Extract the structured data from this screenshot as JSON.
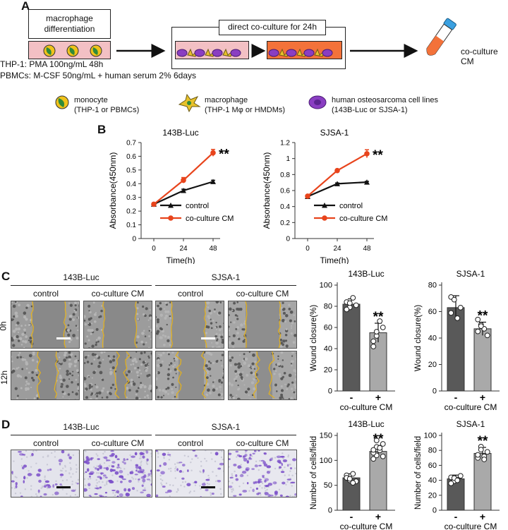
{
  "panelA": {
    "letter": "A",
    "box_title": "macrophage\ndifferentiation",
    "coculture_title": "direct co-culture for 24h",
    "tube_label": "co-culture CM",
    "protocol_line1": "THP-1: PMA 100ng/mL 48h",
    "protocol_line2": "PBMCs: M-CSF 50ng/mL + human serum 2% 6days",
    "legend": [
      {
        "name": "monocyte",
        "sub": "(THP-1 or PBMCs)"
      },
      {
        "name": "macrophage",
        "sub": "(THP-1 Mφ or HMDMs)"
      },
      {
        "name": "human osteosarcoma cell lines",
        "sub": "(143B-Luc or SJSA-1)"
      }
    ]
  },
  "panelB": {
    "letter": "B",
    "sig": "**",
    "ylabel": "Absorbance(450nm)",
    "xlabel": "Time(h)"
  },
  "panelC": {
    "letter": "C",
    "groups": [
      "143B-Luc",
      "SJSA-1"
    ],
    "cond": [
      "control",
      "co-culture CM"
    ],
    "rows": [
      "0h",
      "12h"
    ],
    "ylabel": "Wound closure(%)",
    "xlabel": "co-culture CM",
    "minus": "-",
    "plus": "+",
    "sig": "**"
  },
  "panelD": {
    "letter": "D",
    "groups": [
      "143B-Luc",
      "SJSA-1"
    ],
    "cond": [
      "control",
      "co-culture CM"
    ],
    "ylabel": "Number of cells/field",
    "xlabel": "co-culture CM",
    "minus": "-",
    "plus": "+",
    "sig": "**"
  },
  "colors": {
    "control": "#111111",
    "cm": "#e8441c",
    "bar_dark": "#595959",
    "bar_light": "#a9a9a9",
    "scratch": "#e0b022",
    "crystal": "#7b4fc9"
  },
  "chart_data": [
    {
      "type": "line",
      "title": "143B-Luc",
      "x": [
        0,
        24,
        48
      ],
      "xlabel": "Time(h)",
      "ylabel": "Absorbance(450nm)",
      "ylim": [
        0,
        0.7
      ],
      "yticks": [
        0,
        0.1,
        0.2,
        0.3,
        0.4,
        0.5,
        0.6,
        0.7
      ],
      "legend": "bottom-right",
      "series": [
        {
          "name": "control",
          "values": [
            0.25,
            0.35,
            0.415
          ],
          "err": [
            0.01,
            0.01,
            0.01
          ]
        },
        {
          "name": "co-culture CM",
          "values": [
            0.25,
            0.425,
            0.625
          ],
          "err": [
            0.01,
            0.02,
            0.025
          ]
        }
      ]
    },
    {
      "type": "line",
      "title": "SJSA-1",
      "x": [
        0,
        24,
        48
      ],
      "xlabel": "Time(h)",
      "ylabel": "Absorbance(450nm)",
      "ylim": [
        0,
        1.2
      ],
      "yticks": [
        0,
        0.2,
        0.4,
        0.6,
        0.8,
        1,
        1.2
      ],
      "legend": "bottom-right",
      "series": [
        {
          "name": "control",
          "values": [
            0.525,
            0.685,
            0.705
          ],
          "err": [
            0.015,
            0.01,
            0.01
          ]
        },
        {
          "name": "co-culture CM",
          "values": [
            0.53,
            0.85,
            1.06
          ],
          "err": [
            0.015,
            0.01,
            0.05
          ]
        }
      ]
    },
    {
      "type": "bar",
      "title": "143B-Luc",
      "ylabel": "Wound closure(%)",
      "categories": [
        "-",
        "+"
      ],
      "values": [
        82,
        55
      ],
      "err": [
        5,
        9
      ],
      "ylim": [
        0,
        100
      ],
      "yticks": [
        0,
        20,
        40,
        60,
        80,
        100
      ],
      "points": [
        [
          84,
          79,
          88,
          81,
          77,
          83
        ],
        [
          47,
          52,
          66,
          60,
          42,
          56
        ]
      ]
    },
    {
      "type": "bar",
      "title": "SJSA-1",
      "ylabel": "Wound closure(%)",
      "categories": [
        "-",
        "+"
      ],
      "values": [
        63,
        47
      ],
      "err": [
        9,
        5
      ],
      "ylim": [
        0,
        80
      ],
      "yticks": [
        0,
        20,
        40,
        60,
        80
      ],
      "points": [
        [
          71,
          69,
          55,
          63,
          59
        ],
        [
          54,
          50,
          47,
          42,
          45,
          49
        ]
      ]
    },
    {
      "type": "bar",
      "title": "143B-Luc",
      "ylabel": "Number of cells/field",
      "categories": [
        "-",
        "+"
      ],
      "values": [
        65,
        118
      ],
      "err": [
        8,
        12
      ],
      "ylim": [
        0,
        150
      ],
      "yticks": [
        0,
        50,
        100,
        150
      ],
      "points": [
        [
          70,
          60,
          73,
          58,
          65,
          63,
          55
        ],
        [
          103,
          110,
          120,
          133,
          115,
          127,
          125,
          108,
          121,
          140
        ]
      ]
    },
    {
      "type": "bar",
      "title": "SJSA-1",
      "ylabel": "Number of cells/field",
      "categories": [
        "-",
        "+"
      ],
      "values": [
        42,
        76
      ],
      "err": [
        5,
        8
      ],
      "ylim": [
        0,
        100
      ],
      "yticks": [
        0,
        20,
        40,
        60,
        80,
        100
      ],
      "points": [
        [
          44,
          39,
          41,
          46,
          36,
          43,
          40
        ],
        [
          70,
          85,
          72,
          78,
          74,
          81,
          68
        ]
      ]
    }
  ]
}
